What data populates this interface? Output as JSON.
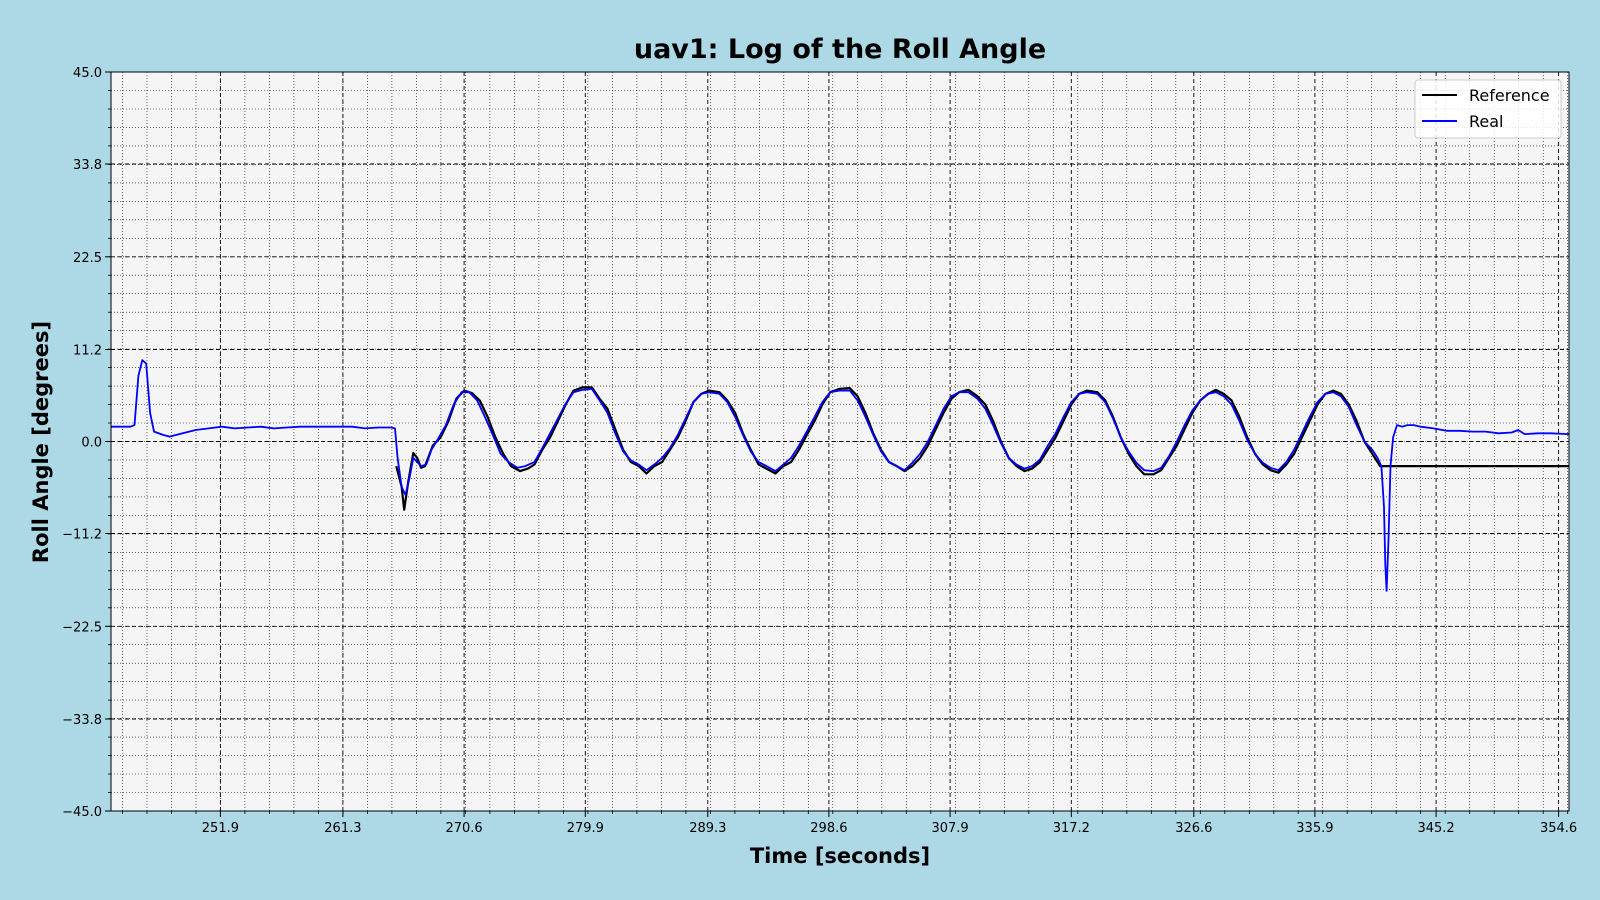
{
  "chart_data": {
    "type": "line",
    "title": "uav1: Log of the Roll Angle",
    "xlabel": "Time [seconds]",
    "ylabel": "Roll Angle [degrees]",
    "xlim": [
      243.5,
      355.4
    ],
    "ylim": [
      -45.0,
      45.0
    ],
    "xticks": [
      251.9,
      261.3,
      270.6,
      279.9,
      289.3,
      298.6,
      307.9,
      317.2,
      326.6,
      335.9,
      345.2,
      354.6
    ],
    "xtick_labels": [
      "251.9",
      "261.3",
      "270.6",
      "279.9",
      "289.3",
      "298.6",
      "307.9",
      "317.2",
      "326.6",
      "335.9",
      "345.2",
      "354.6"
    ],
    "yticks": [
      45.0,
      33.8,
      22.5,
      11.2,
      0.0,
      -11.2,
      -22.5,
      -33.8,
      -45.0
    ],
    "ytick_labels": [
      "45.0",
      "33.8",
      "22.5",
      "11.2",
      "0.0",
      "−11.2",
      "−22.5",
      "−33.8",
      "−45.0"
    ],
    "grid": true,
    "legend_position": "top-right",
    "series": [
      {
        "name": "Reference",
        "color": "#000000",
        "points": [
          [
            265.4,
            -3.0
          ],
          [
            265.8,
            -5.5
          ],
          [
            266.0,
            -8.3
          ],
          [
            266.3,
            -5.0
          ],
          [
            266.7,
            -1.4
          ],
          [
            267.0,
            -2.0
          ],
          [
            267.3,
            -3.2
          ],
          [
            267.6,
            -3.0
          ],
          [
            268.2,
            -0.5
          ],
          [
            268.8,
            0.5
          ],
          [
            269.4,
            2.5
          ],
          [
            270.0,
            5.2
          ],
          [
            270.6,
            6.2
          ],
          [
            271.2,
            5.9
          ],
          [
            271.8,
            5.0
          ],
          [
            272.4,
            3.0
          ],
          [
            273.0,
            0.5
          ],
          [
            273.6,
            -1.5
          ],
          [
            274.2,
            -3.0
          ],
          [
            274.9,
            -3.6
          ],
          [
            275.5,
            -3.3
          ],
          [
            276.0,
            -2.8
          ],
          [
            276.6,
            -1.0
          ],
          [
            277.2,
            0.5
          ],
          [
            277.8,
            2.5
          ],
          [
            278.4,
            4.5
          ],
          [
            279.0,
            6.2
          ],
          [
            279.7,
            6.6
          ],
          [
            280.4,
            6.6
          ],
          [
            281.0,
            5.2
          ],
          [
            281.6,
            4.0
          ],
          [
            282.2,
            1.5
          ],
          [
            282.8,
            -1.0
          ],
          [
            283.4,
            -2.5
          ],
          [
            284.0,
            -3.0
          ],
          [
            284.6,
            -3.9
          ],
          [
            285.2,
            -3.0
          ],
          [
            285.8,
            -2.5
          ],
          [
            286.4,
            -1.0
          ],
          [
            287.0,
            0.5
          ],
          [
            287.6,
            2.5
          ],
          [
            288.2,
            4.8
          ],
          [
            288.8,
            5.8
          ],
          [
            289.4,
            6.2
          ],
          [
            290.2,
            6.0
          ],
          [
            290.8,
            5.0
          ],
          [
            291.4,
            3.5
          ],
          [
            292.0,
            1.0
          ],
          [
            292.6,
            -1.0
          ],
          [
            293.2,
            -2.8
          ],
          [
            293.8,
            -3.3
          ],
          [
            294.5,
            -3.9
          ],
          [
            295.1,
            -3.0
          ],
          [
            295.7,
            -2.5
          ],
          [
            296.3,
            -1.0
          ],
          [
            296.9,
            0.8
          ],
          [
            297.5,
            2.5
          ],
          [
            298.1,
            4.5
          ],
          [
            298.7,
            6.0
          ],
          [
            299.4,
            6.4
          ],
          [
            300.2,
            6.5
          ],
          [
            300.8,
            5.5
          ],
          [
            301.4,
            3.5
          ],
          [
            302.0,
            1.0
          ],
          [
            302.6,
            -1.0
          ],
          [
            303.2,
            -2.5
          ],
          [
            303.8,
            -3.0
          ],
          [
            304.4,
            -3.6
          ],
          [
            305.0,
            -3.0
          ],
          [
            305.6,
            -2.0
          ],
          [
            306.2,
            -0.5
          ],
          [
            306.8,
            1.5
          ],
          [
            307.4,
            3.5
          ],
          [
            308.0,
            5.2
          ],
          [
            308.6,
            6.0
          ],
          [
            309.3,
            6.3
          ],
          [
            310.0,
            5.5
          ],
          [
            310.6,
            4.5
          ],
          [
            311.2,
            2.5
          ],
          [
            311.8,
            0.0
          ],
          [
            312.4,
            -2.0
          ],
          [
            313.0,
            -3.0
          ],
          [
            313.6,
            -3.6
          ],
          [
            314.2,
            -3.3
          ],
          [
            314.8,
            -2.5
          ],
          [
            315.4,
            -1.0
          ],
          [
            316.0,
            0.5
          ],
          [
            316.6,
            2.5
          ],
          [
            317.2,
            4.5
          ],
          [
            317.8,
            5.8
          ],
          [
            318.4,
            6.2
          ],
          [
            319.2,
            6.0
          ],
          [
            319.8,
            5.0
          ],
          [
            320.4,
            3.0
          ],
          [
            321.0,
            0.5
          ],
          [
            321.6,
            -1.5
          ],
          [
            322.2,
            -3.0
          ],
          [
            322.8,
            -4.0
          ],
          [
            323.5,
            -4.0
          ],
          [
            324.1,
            -3.5
          ],
          [
            324.7,
            -2.0
          ],
          [
            325.3,
            -0.5
          ],
          [
            325.9,
            1.5
          ],
          [
            326.5,
            3.5
          ],
          [
            327.1,
            5.0
          ],
          [
            327.7,
            5.8
          ],
          [
            328.3,
            6.3
          ],
          [
            328.9,
            5.8
          ],
          [
            329.5,
            5.0
          ],
          [
            330.1,
            3.0
          ],
          [
            330.7,
            0.5
          ],
          [
            331.3,
            -1.5
          ],
          [
            331.9,
            -2.8
          ],
          [
            332.5,
            -3.5
          ],
          [
            333.1,
            -3.8
          ],
          [
            333.7,
            -2.8
          ],
          [
            334.3,
            -1.5
          ],
          [
            334.9,
            0.5
          ],
          [
            335.5,
            2.5
          ],
          [
            336.1,
            4.5
          ],
          [
            336.7,
            5.8
          ],
          [
            337.3,
            6.2
          ],
          [
            337.9,
            5.8
          ],
          [
            338.5,
            4.5
          ],
          [
            339.1,
            2.5
          ],
          [
            339.7,
            0.0
          ],
          [
            340.3,
            -1.5
          ],
          [
            340.9,
            -3.0
          ],
          [
            344.2,
            -3.0
          ],
          [
            355.4,
            -3.0
          ]
        ]
      },
      {
        "name": "Real",
        "color": "#0000ff",
        "points": [
          [
            243.5,
            1.8
          ],
          [
            245.0,
            1.8
          ],
          [
            245.3,
            2.0
          ],
          [
            245.6,
            8.0
          ],
          [
            245.9,
            9.9
          ],
          [
            246.2,
            9.5
          ],
          [
            246.5,
            3.5
          ],
          [
            246.8,
            1.2
          ],
          [
            247.5,
            0.8
          ],
          [
            248.0,
            0.6
          ],
          [
            249.0,
            1.0
          ],
          [
            250.0,
            1.4
          ],
          [
            251.0,
            1.6
          ],
          [
            252.0,
            1.8
          ],
          [
            253.0,
            1.6
          ],
          [
            254.0,
            1.7
          ],
          [
            255.0,
            1.8
          ],
          [
            256.0,
            1.6
          ],
          [
            257.0,
            1.7
          ],
          [
            258.0,
            1.8
          ],
          [
            260.0,
            1.8
          ],
          [
            262.0,
            1.8
          ],
          [
            263.0,
            1.6
          ],
          [
            264.0,
            1.7
          ],
          [
            265.0,
            1.7
          ],
          [
            265.3,
            1.6
          ],
          [
            265.5,
            -2.0
          ],
          [
            265.8,
            -5.5
          ],
          [
            266.1,
            -6.5
          ],
          [
            266.4,
            -4.5
          ],
          [
            266.7,
            -2.0
          ],
          [
            267.0,
            -2.5
          ],
          [
            267.3,
            -3.0
          ],
          [
            267.7,
            -2.8
          ],
          [
            268.1,
            -1.0
          ],
          [
            268.6,
            0.3
          ],
          [
            269.2,
            2.0
          ],
          [
            269.8,
            4.5
          ],
          [
            270.4,
            6.0
          ],
          [
            271.0,
            6.0
          ],
          [
            271.6,
            5.0
          ],
          [
            272.2,
            3.0
          ],
          [
            272.8,
            0.8
          ],
          [
            273.4,
            -1.5
          ],
          [
            274.0,
            -2.5
          ],
          [
            274.7,
            -3.2
          ],
          [
            275.3,
            -3.0
          ],
          [
            276.0,
            -2.5
          ],
          [
            276.6,
            -0.8
          ],
          [
            277.2,
            1.0
          ],
          [
            277.8,
            2.8
          ],
          [
            278.4,
            4.6
          ],
          [
            279.0,
            6.0
          ],
          [
            279.7,
            6.3
          ],
          [
            280.4,
            6.4
          ],
          [
            281.0,
            5.0
          ],
          [
            281.6,
            3.5
          ],
          [
            282.2,
            1.0
          ],
          [
            282.8,
            -1.2
          ],
          [
            283.4,
            -2.3
          ],
          [
            284.0,
            -2.8
          ],
          [
            284.6,
            -3.5
          ],
          [
            285.2,
            -2.8
          ],
          [
            285.8,
            -2.0
          ],
          [
            286.4,
            -0.8
          ],
          [
            287.0,
            0.8
          ],
          [
            287.6,
            2.8
          ],
          [
            288.2,
            4.8
          ],
          [
            288.8,
            5.8
          ],
          [
            289.4,
            6.0
          ],
          [
            290.2,
            5.8
          ],
          [
            290.8,
            4.8
          ],
          [
            291.4,
            3.0
          ],
          [
            292.0,
            0.8
          ],
          [
            292.6,
            -1.2
          ],
          [
            293.2,
            -2.5
          ],
          [
            293.8,
            -3.0
          ],
          [
            294.5,
            -3.6
          ],
          [
            295.1,
            -2.8
          ],
          [
            295.7,
            -2.0
          ],
          [
            296.3,
            -0.5
          ],
          [
            296.9,
            1.2
          ],
          [
            297.5,
            3.0
          ],
          [
            298.1,
            4.8
          ],
          [
            298.7,
            6.0
          ],
          [
            299.4,
            6.2
          ],
          [
            300.2,
            6.2
          ],
          [
            300.8,
            5.0
          ],
          [
            301.4,
            3.0
          ],
          [
            302.0,
            0.8
          ],
          [
            302.6,
            -1.2
          ],
          [
            303.2,
            -2.5
          ],
          [
            303.8,
            -3.0
          ],
          [
            304.4,
            -3.5
          ],
          [
            305.0,
            -2.6
          ],
          [
            305.6,
            -1.5
          ],
          [
            306.2,
            0.0
          ],
          [
            306.8,
            2.0
          ],
          [
            307.4,
            4.0
          ],
          [
            308.0,
            5.5
          ],
          [
            308.6,
            6.0
          ],
          [
            309.3,
            6.0
          ],
          [
            310.0,
            5.2
          ],
          [
            310.6,
            4.0
          ],
          [
            311.2,
            2.0
          ],
          [
            311.8,
            -0.2
          ],
          [
            312.4,
            -2.0
          ],
          [
            313.0,
            -2.8
          ],
          [
            313.6,
            -3.3
          ],
          [
            314.2,
            -3.0
          ],
          [
            314.8,
            -2.2
          ],
          [
            315.4,
            -0.5
          ],
          [
            316.0,
            1.0
          ],
          [
            316.6,
            3.0
          ],
          [
            317.2,
            4.8
          ],
          [
            317.8,
            5.8
          ],
          [
            318.4,
            6.0
          ],
          [
            319.2,
            5.8
          ],
          [
            319.8,
            4.8
          ],
          [
            320.4,
            2.8
          ],
          [
            321.0,
            0.5
          ],
          [
            321.6,
            -1.2
          ],
          [
            322.2,
            -2.6
          ],
          [
            322.8,
            -3.5
          ],
          [
            323.5,
            -3.6
          ],
          [
            324.1,
            -3.2
          ],
          [
            324.7,
            -1.8
          ],
          [
            325.3,
            0.0
          ],
          [
            325.9,
            2.0
          ],
          [
            326.5,
            3.8
          ],
          [
            327.1,
            5.0
          ],
          [
            327.7,
            5.8
          ],
          [
            328.3,
            6.0
          ],
          [
            328.9,
            5.5
          ],
          [
            329.5,
            4.5
          ],
          [
            330.1,
            2.5
          ],
          [
            330.7,
            0.2
          ],
          [
            331.3,
            -1.5
          ],
          [
            331.9,
            -2.6
          ],
          [
            332.5,
            -3.2
          ],
          [
            333.1,
            -3.5
          ],
          [
            333.7,
            -2.5
          ],
          [
            334.3,
            -1.0
          ],
          [
            334.9,
            1.0
          ],
          [
            335.5,
            3.0
          ],
          [
            336.1,
            4.8
          ],
          [
            336.7,
            5.8
          ],
          [
            337.3,
            6.0
          ],
          [
            337.9,
            5.5
          ],
          [
            338.5,
            4.2
          ],
          [
            339.1,
            2.0
          ],
          [
            339.7,
            0.0
          ],
          [
            340.3,
            -1.0
          ],
          [
            340.7,
            -2.0
          ],
          [
            341.0,
            -3.0
          ],
          [
            341.2,
            -8.0
          ],
          [
            341.3,
            -15.0
          ],
          [
            341.4,
            -18.2
          ],
          [
            341.55,
            -12.0
          ],
          [
            341.7,
            -3.0
          ],
          [
            341.9,
            0.5
          ],
          [
            342.2,
            2.0
          ],
          [
            342.6,
            1.8
          ],
          [
            343.0,
            2.0
          ],
          [
            343.5,
            2.0
          ],
          [
            344.0,
            1.8
          ],
          [
            345.0,
            1.6
          ],
          [
            346.0,
            1.3
          ],
          [
            347.0,
            1.3
          ],
          [
            348.0,
            1.2
          ],
          [
            349.0,
            1.2
          ],
          [
            350.0,
            1.0
          ],
          [
            351.0,
            1.1
          ],
          [
            351.5,
            1.4
          ],
          [
            352.0,
            0.9
          ],
          [
            353.0,
            1.0
          ],
          [
            354.0,
            1.0
          ],
          [
            355.4,
            0.9
          ]
        ]
      }
    ]
  }
}
